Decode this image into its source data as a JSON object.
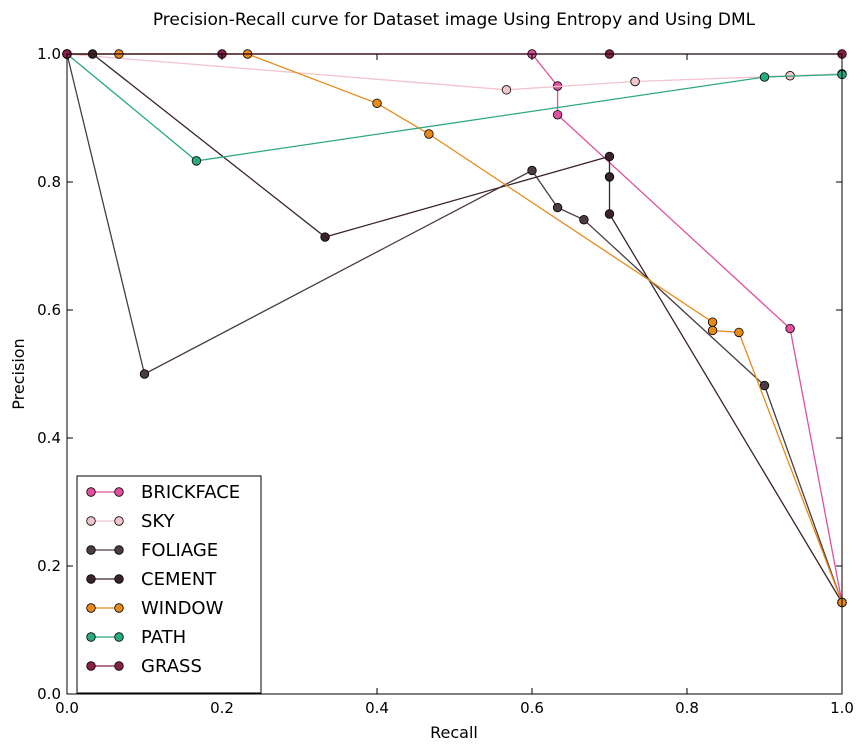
{
  "chart_data": {
    "type": "line",
    "title": "Precision-Recall curve for Dataset image Using Entropy and Using DML",
    "xlabel": "Recall",
    "ylabel": "Precision",
    "xlim": [
      0.0,
      1.0
    ],
    "ylim": [
      0.0,
      1.0
    ],
    "xticks": [
      "0.0",
      "0.2",
      "0.4",
      "0.6",
      "0.8",
      "1.0"
    ],
    "yticks": [
      "0.0",
      "0.2",
      "0.4",
      "0.6",
      "0.8",
      "1.0"
    ],
    "grid": false,
    "legend_position": "lower-left",
    "series": [
      {
        "name": "BRICKFACE",
        "color": "#e0509e",
        "x": [
          0.0,
          0.6,
          0.633,
          0.633,
          0.933,
          1.0
        ],
        "y": [
          1.0,
          1.0,
          0.95,
          0.905,
          0.571,
          0.143
        ]
      },
      {
        "name": "SKY",
        "color": "#f2c4cc",
        "x": [
          0.0,
          0.567,
          0.733,
          0.933,
          1.0
        ],
        "y": [
          1.0,
          0.944,
          0.957,
          0.966,
          0.969
        ]
      },
      {
        "name": "FOLIAGE",
        "color": "#4a3c40",
        "x": [
          0.0,
          0.1,
          0.6,
          0.633,
          0.667,
          0.9,
          1.0
        ],
        "y": [
          1.0,
          0.5,
          0.818,
          0.76,
          0.741,
          0.482,
          0.143
        ]
      },
      {
        "name": "CEMENT",
        "color": "#3a2428",
        "x": [
          0.0,
          0.033,
          0.333,
          0.7,
          0.7,
          0.7,
          1.0
        ],
        "y": [
          1.0,
          1.0,
          0.714,
          0.84,
          0.808,
          0.75,
          0.143
        ]
      },
      {
        "name": "WINDOW",
        "color": "#e88a1a",
        "x": [
          0.0,
          0.067,
          0.233,
          0.4,
          0.467,
          0.833,
          0.833,
          0.867,
          1.0
        ],
        "y": [
          1.0,
          1.0,
          1.0,
          0.923,
          0.875,
          0.581,
          0.568,
          0.565,
          0.143
        ]
      },
      {
        "name": "PATH",
        "color": "#2aa882",
        "x": [
          0.0,
          0.167,
          0.9,
          1.0
        ],
        "y": [
          1.0,
          0.833,
          0.964,
          0.968
        ]
      },
      {
        "name": "GRASS",
        "color": "#8a1f48",
        "x": [
          0.0,
          0.2,
          0.7,
          1.0
        ],
        "y": [
          1.0,
          1.0,
          1.0,
          1.0
        ]
      }
    ]
  }
}
